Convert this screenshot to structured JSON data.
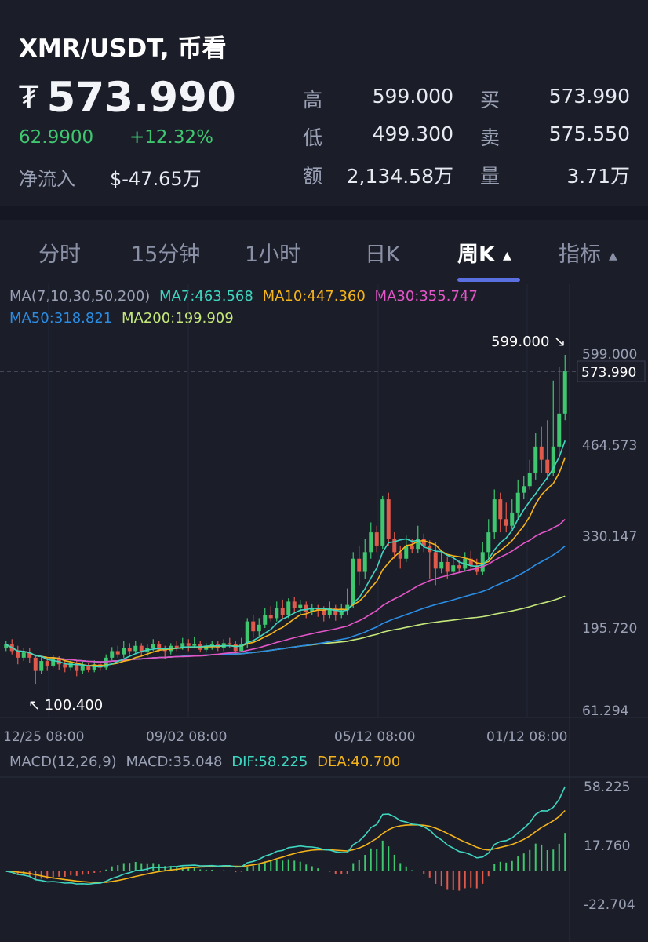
{
  "header": {
    "title": "XMR/USDT, 币看",
    "currency_symbol": "₮",
    "price": "573.990",
    "change_abs": "62.9900",
    "change_pct": "+12.32%",
    "inflow_label": "净流入",
    "inflow_value": "$-47.65万",
    "stats": {
      "high_label": "高",
      "high": "599.000",
      "low_label": "低",
      "low": "499.300",
      "amount_label": "额",
      "amount": "2,134.58万",
      "bid_label": "买",
      "bid": "573.990",
      "ask_label": "卖",
      "ask": "575.550",
      "volume_label": "量",
      "volume": "3.71万"
    }
  },
  "tabs": [
    {
      "label": "分时"
    },
    {
      "label": "15分钟"
    },
    {
      "label": "1小时"
    },
    {
      "label": "日K"
    },
    {
      "label": "周K",
      "active": true
    },
    {
      "label": "指标"
    }
  ],
  "indicators": {
    "ma_title": "MA(7,10,30,50,200)",
    "ma7": "MA7:463.568",
    "ma10": "MA10:447.360",
    "ma30": "MA30:355.747",
    "ma50": "MA50:318.821",
    "ma200": "MA200:199.909",
    "macd_title": "MACD(12,26,9)",
    "macd": "MACD:35.048",
    "dif": "DIF:58.225",
    "dea": "DEA:40.700"
  },
  "colors": {
    "up": "#3ec76f",
    "down": "#e05a4c",
    "ma7": "#3ed6c0",
    "ma10": "#f5b41a",
    "ma30": "#e455c8",
    "ma50": "#2a8de4",
    "ma200": "#c5e87a",
    "accent": "#5b6fe0"
  },
  "chart_data": {
    "type": "candlestick",
    "price_axis_ticks": [
      "599.000",
      "464.573",
      "330.147",
      "195.720",
      "61.294"
    ],
    "current_price_label": "573.990",
    "max_annotation": "599.000",
    "min_annotation": "100.400",
    "x_ticks": [
      "12/25 08:00",
      "09/02 08:00",
      "05/12 08:00",
      "01/12 08:00"
    ],
    "macd_axis_ticks": [
      "58.225",
      "17.760",
      "-22.704"
    ],
    "price_range": [
      61.294,
      599.0
    ],
    "macd_range": [
      -22.704,
      58.225
    ],
    "candles": [
      [
        155,
        160,
        165,
        150
      ],
      [
        160,
        150,
        168,
        145
      ],
      [
        150,
        140,
        158,
        130
      ],
      [
        140,
        148,
        155,
        135
      ],
      [
        148,
        140,
        155,
        132
      ],
      [
        140,
        120,
        145,
        100.4
      ],
      [
        120,
        135,
        142,
        115
      ],
      [
        135,
        128,
        140,
        120
      ],
      [
        128,
        138,
        144,
        125
      ],
      [
        138,
        130,
        142,
        122
      ],
      [
        130,
        125,
        135,
        118
      ],
      [
        125,
        132,
        138,
        120
      ],
      [
        132,
        120,
        136,
        112
      ],
      [
        120,
        128,
        134,
        115
      ],
      [
        128,
        122,
        132,
        118
      ],
      [
        122,
        130,
        136,
        118
      ],
      [
        130,
        125,
        134,
        120
      ],
      [
        125,
        140,
        145,
        122
      ],
      [
        140,
        150,
        156,
        136
      ],
      [
        150,
        145,
        158,
        140
      ],
      [
        145,
        155,
        165,
        140
      ],
      [
        155,
        150,
        162,
        145
      ],
      [
        150,
        158,
        165,
        146
      ],
      [
        158,
        148,
        162,
        142
      ],
      [
        148,
        155,
        160,
        142
      ],
      [
        155,
        160,
        168,
        150
      ],
      [
        160,
        152,
        166,
        148
      ],
      [
        152,
        150,
        158,
        138
      ],
      [
        150,
        158,
        162,
        145
      ],
      [
        158,
        155,
        165,
        150
      ],
      [
        155,
        162,
        170,
        152
      ],
      [
        162,
        158,
        168,
        150
      ],
      [
        158,
        160,
        172,
        154
      ],
      [
        160,
        152,
        165,
        148
      ],
      [
        152,
        158,
        162,
        148
      ],
      [
        158,
        160,
        166,
        152
      ],
      [
        160,
        155,
        165,
        150
      ],
      [
        155,
        162,
        168,
        150
      ],
      [
        162,
        160,
        170,
        155
      ],
      [
        160,
        150,
        165,
        145
      ],
      [
        150,
        160,
        170,
        148
      ],
      [
        160,
        195,
        200,
        155
      ],
      [
        195,
        180,
        205,
        170
      ],
      [
        180,
        190,
        200,
        172
      ],
      [
        190,
        205,
        215,
        185
      ],
      [
        205,
        200,
        218,
        195
      ],
      [
        200,
        215,
        225,
        195
      ],
      [
        215,
        205,
        228,
        198
      ],
      [
        205,
        225,
        230,
        200
      ],
      [
        225,
        215,
        232,
        210
      ],
      [
        215,
        220,
        228,
        205
      ],
      [
        220,
        210,
        225,
        200
      ],
      [
        210,
        215,
        222,
        205
      ],
      [
        215,
        212,
        220,
        202
      ],
      [
        212,
        205,
        218,
        195
      ],
      [
        205,
        215,
        225,
        200
      ],
      [
        215,
        205,
        220,
        196
      ],
      [
        205,
        212,
        222,
        200
      ],
      [
        212,
        220,
        245,
        205
      ],
      [
        220,
        290,
        300,
        215
      ],
      [
        290,
        270,
        310,
        250
      ],
      [
        270,
        300,
        320,
        260
      ],
      [
        300,
        330,
        345,
        290
      ],
      [
        330,
        310,
        340,
        300
      ],
      [
        310,
        380,
        385,
        305
      ],
      [
        380,
        320,
        390,
        310
      ],
      [
        320,
        300,
        330,
        290
      ],
      [
        300,
        290,
        310,
        275
      ],
      [
        290,
        310,
        325,
        285
      ],
      [
        310,
        305,
        320,
        298
      ],
      [
        305,
        320,
        340,
        298
      ],
      [
        320,
        310,
        328,
        300
      ],
      [
        310,
        300,
        318,
        260
      ],
      [
        300,
        275,
        315,
        250
      ],
      [
        275,
        285,
        300,
        268
      ],
      [
        285,
        270,
        292,
        260
      ],
      [
        270,
        280,
        290,
        265
      ],
      [
        280,
        275,
        288,
        268
      ],
      [
        275,
        290,
        300,
        270
      ],
      [
        290,
        280,
        302,
        272
      ],
      [
        280,
        270,
        290,
        265
      ],
      [
        270,
        300,
        315,
        265
      ],
      [
        300,
        330,
        350,
        290
      ],
      [
        330,
        380,
        395,
        320
      ],
      [
        380,
        350,
        390,
        330
      ],
      [
        350,
        340,
        375,
        330
      ],
      [
        340,
        360,
        380,
        335
      ],
      [
        360,
        390,
        410,
        350
      ],
      [
        390,
        400,
        415,
        380
      ],
      [
        400,
        420,
        440,
        395
      ],
      [
        420,
        460,
        480,
        410
      ],
      [
        460,
        440,
        490,
        420
      ],
      [
        440,
        420,
        500,
        410
      ],
      [
        420,
        460,
        560,
        415
      ],
      [
        460,
        510,
        580,
        450
      ],
      [
        510,
        574,
        599,
        500
      ]
    ]
  }
}
